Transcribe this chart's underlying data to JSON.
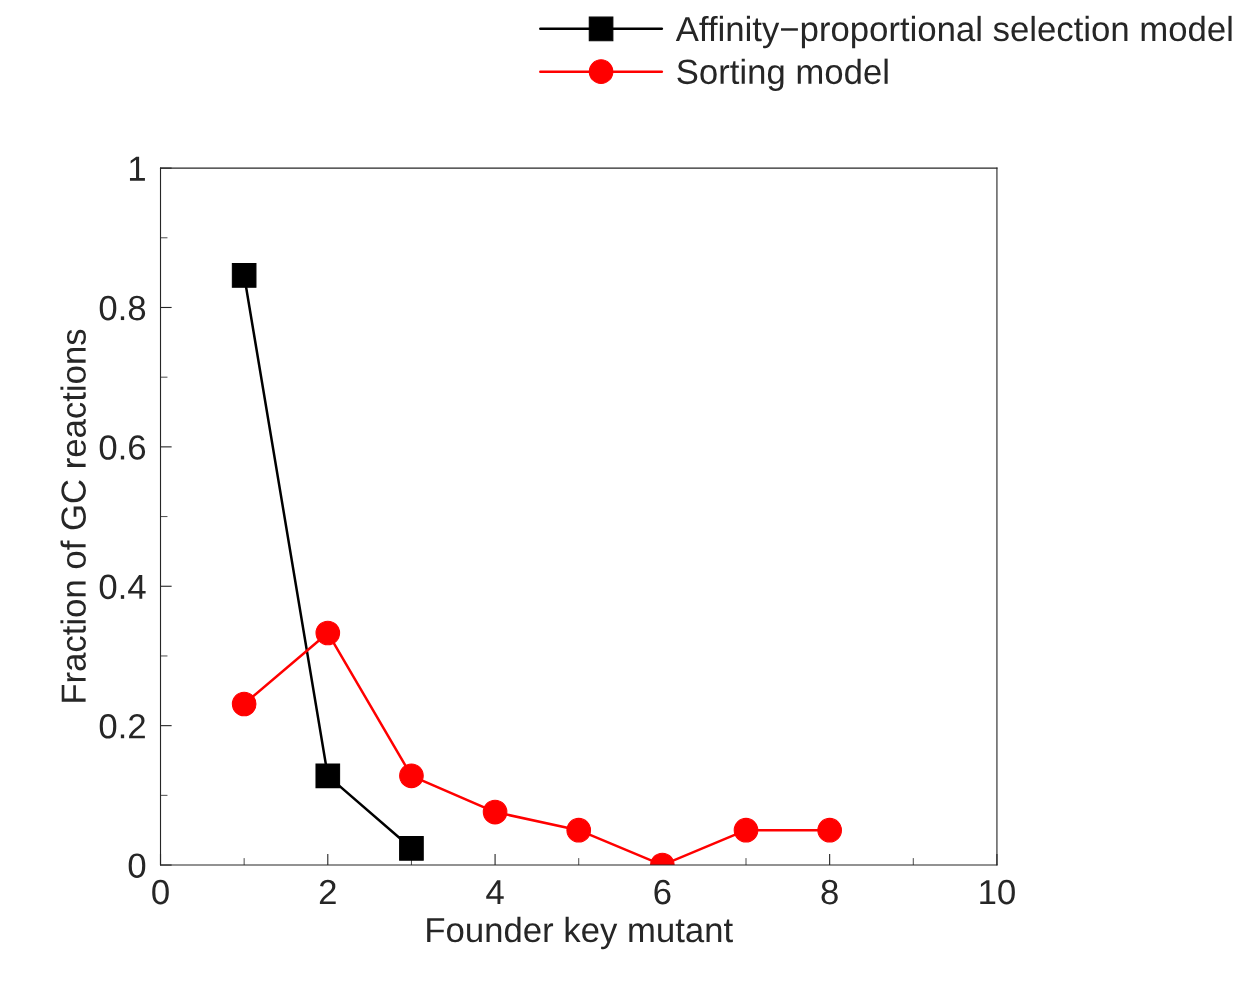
{
  "chart_data": {
    "type": "line",
    "xlabel": "Founder key mutant",
    "ylabel": "Fraction of GC reactions",
    "xlim": [
      0,
      10
    ],
    "xticks": [
      0,
      2,
      4,
      6,
      8,
      10
    ],
    "ylim": [
      0,
      1
    ],
    "yticks": [
      0,
      {
        "value": 0.2,
        "label": "0.2"
      },
      {
        "value": 0.4,
        "label": "0.4"
      },
      {
        "value": 0.6,
        "label": "0.6"
      },
      {
        "value": 0.8,
        "label": "0.8"
      },
      1
    ],
    "series": [
      {
        "name": "Affinity−proportional selection model",
        "color": "#000000",
        "marker": "square",
        "x": [
          1,
          2,
          3
        ],
        "values": [
          0.846,
          0.128,
          0.024
        ]
      },
      {
        "name": "Sorting model",
        "color": "#ff0000",
        "marker": "circle",
        "x": [
          1,
          2,
          3,
          4,
          5,
          6,
          7,
          8
        ],
        "values": [
          0.231,
          0.333,
          0.128,
          0.076,
          0.05,
          0,
          0.05,
          0.05
        ]
      }
    ],
    "grid": false,
    "legend": "top right",
    "line_style": "solid"
  }
}
